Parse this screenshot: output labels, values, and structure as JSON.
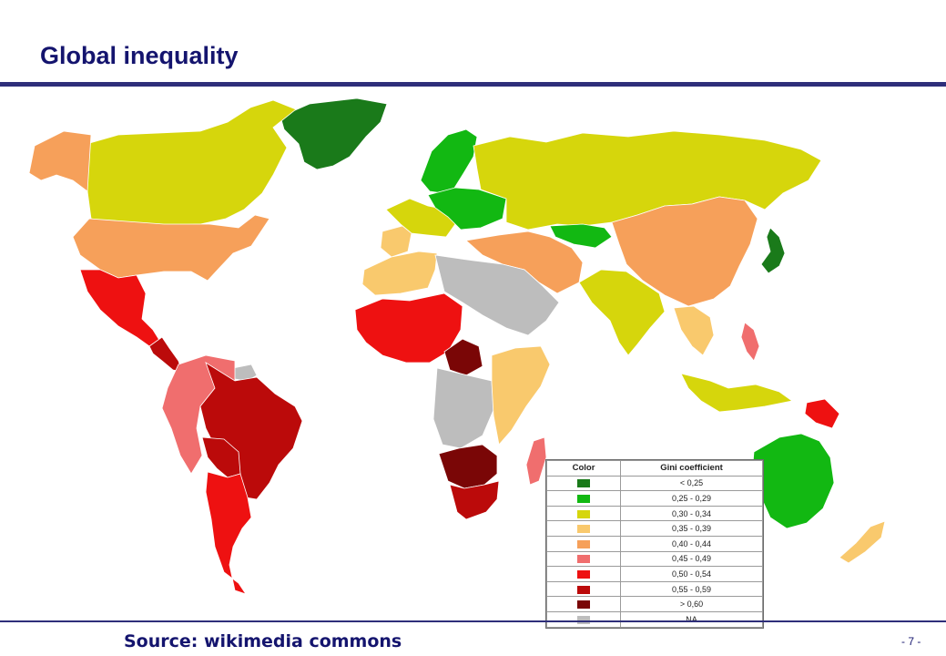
{
  "slide": {
    "title": "Global inequality",
    "source": "Source: wikimedia commons",
    "page_number": "- 7 -"
  },
  "legend": {
    "headers": [
      "Color",
      "Gini coefficient"
    ],
    "items": [
      {
        "range": "< 0,25",
        "color": "#1a7a1a"
      },
      {
        "range": "0,25 - 0,29",
        "color": "#12b812"
      },
      {
        "range": "0,30 - 0,34",
        "color": "#d6d60c"
      },
      {
        "range": "0,35 - 0,39",
        "color": "#f9c96d"
      },
      {
        "range": "0,40 - 0,44",
        "color": "#f6a05a"
      },
      {
        "range": "0,45 - 0,49",
        "color": "#f06e6e"
      },
      {
        "range": "0,50 - 0,54",
        "color": "#ee1111"
      },
      {
        "range": "0,55 - 0,59",
        "color": "#bb0a0a"
      },
      {
        "range": "> 0,60",
        "color": "#7a0606"
      },
      {
        "range": "NA",
        "color": "#bdbdbd"
      }
    ]
  },
  "map": {
    "regions": [
      {
        "name": "greenland",
        "color": "#1a7a1a"
      },
      {
        "name": "canada",
        "color": "#d6d60c"
      },
      {
        "name": "alaska",
        "color": "#f6a05a"
      },
      {
        "name": "usa",
        "color": "#f6a05a"
      },
      {
        "name": "mexico",
        "color": "#ee1111"
      },
      {
        "name": "central-america",
        "color": "#bb0a0a"
      },
      {
        "name": "brazil",
        "color": "#bb0a0a"
      },
      {
        "name": "andes",
        "color": "#f06e6e"
      },
      {
        "name": "bolivia",
        "color": "#bb0a0a"
      },
      {
        "name": "argentina",
        "color": "#ee1111"
      },
      {
        "name": "guianas",
        "color": "#bdbdbd"
      },
      {
        "name": "russia",
        "color": "#d6d60c"
      },
      {
        "name": "scandinavia",
        "color": "#12b812"
      },
      {
        "name": "western-europe",
        "color": "#d6d60c"
      },
      {
        "name": "central-europe",
        "color": "#12b812"
      },
      {
        "name": "iberia",
        "color": "#f9c96d"
      },
      {
        "name": "turkey-iran",
        "color": "#f6a05a"
      },
      {
        "name": "central-asia",
        "color": "#12b812"
      },
      {
        "name": "china",
        "color": "#f6a05a"
      },
      {
        "name": "india",
        "color": "#d6d60c"
      },
      {
        "name": "japan",
        "color": "#1a7a1a"
      },
      {
        "name": "southeast-asia",
        "color": "#f9c96d"
      },
      {
        "name": "indonesia",
        "color": "#d6d60c"
      },
      {
        "name": "philippines",
        "color": "#f06e6e"
      },
      {
        "name": "png",
        "color": "#ee1111"
      },
      {
        "name": "australia",
        "color": "#12b812"
      },
      {
        "name": "new-zealand",
        "color": "#f9c96d"
      },
      {
        "name": "north-africa",
        "color": "#f9c96d"
      },
      {
        "name": "arabia-sahara",
        "color": "#bdbdbd"
      },
      {
        "name": "sahel",
        "color": "#ee1111"
      },
      {
        "name": "central-africa",
        "color": "#7a0606"
      },
      {
        "name": "congo",
        "color": "#bdbdbd"
      },
      {
        "name": "east-africa",
        "color": "#f9c96d"
      },
      {
        "name": "southern-africa",
        "color": "#7a0606"
      },
      {
        "name": "south-africa",
        "color": "#bb0a0a"
      },
      {
        "name": "madagascar",
        "color": "#f06e6e"
      }
    ]
  }
}
